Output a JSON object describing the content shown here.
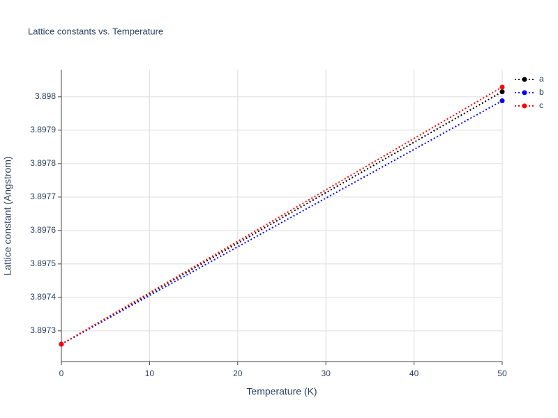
{
  "chart_data": {
    "type": "line",
    "title": "Lattice constants vs. Temperature",
    "x_label": "Temperature (K)",
    "y_label": "Lattice constant (Angstrom)",
    "x": [
      0,
      50
    ],
    "series": [
      {
        "name": "a",
        "color": "#000000",
        "values": [
          3.89726,
          3.898015
        ]
      },
      {
        "name": "b",
        "color": "#0000ff",
        "values": [
          3.89726,
          3.897988
        ]
      },
      {
        "name": "c",
        "color": "#ff0000",
        "values": [
          3.89726,
          3.898029
        ]
      }
    ],
    "xlim": [
      0,
      50
    ],
    "xticks": [
      0,
      10,
      20,
      30,
      40,
      50
    ],
    "ylim": [
      3.897208,
      3.898081
    ],
    "yticks": [
      3.8973,
      3.8974,
      3.8975,
      3.8976,
      3.8977,
      3.8978,
      3.8979,
      3.898
    ],
    "grid": true,
    "legend": "top-right"
  }
}
